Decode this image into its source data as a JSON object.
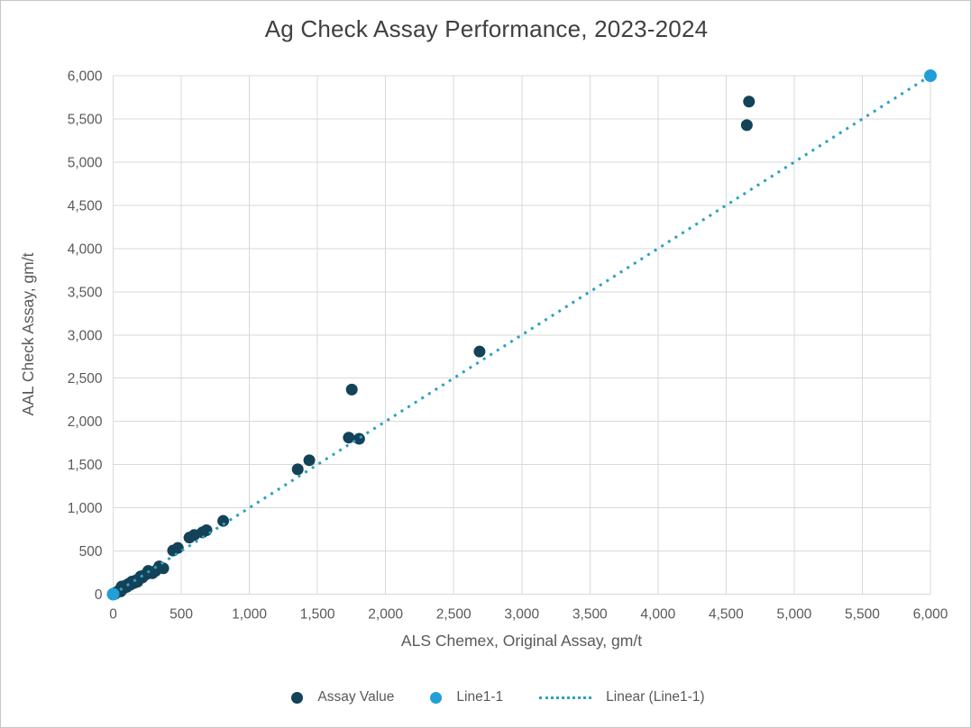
{
  "window": {
    "background": "#FFFFFF",
    "border_color": "#C6C6C6"
  },
  "chart_data": {
    "type": "scatter",
    "title": "Ag Check Assay Performance, 2023-2024",
    "xlabel": "ALS Chemex, Original Assay, gm/t",
    "ylabel": "AAL Check Assay, gm/t",
    "xlim": [
      0,
      6000
    ],
    "ylim": [
      0,
      6000
    ],
    "grid": true,
    "legend_position": "bottom",
    "colors": {
      "assay": "#134259",
      "line11": "#219FD6",
      "trend": "#2BA1C4",
      "grid": "#D9D9D9",
      "tick_text": "#595959",
      "title_text": "#404040"
    },
    "x_ticks": [
      {
        "v": 0,
        "label": "0"
      },
      {
        "v": 500,
        "label": "500"
      },
      {
        "v": 1000,
        "label": "1,000"
      },
      {
        "v": 1500,
        "label": "1,500"
      },
      {
        "v": 2000,
        "label": "2,000"
      },
      {
        "v": 2500,
        "label": "2,500"
      },
      {
        "v": 3000,
        "label": "3,000"
      },
      {
        "v": 3500,
        "label": "3,500"
      },
      {
        "v": 4000,
        "label": "4,000"
      },
      {
        "v": 4500,
        "label": "4,500"
      },
      {
        "v": 5000,
        "label": "5,000"
      },
      {
        "v": 5500,
        "label": "5,500"
      },
      {
        "v": 6000,
        "label": "6,000"
      }
    ],
    "y_ticks": [
      {
        "v": 0,
        "label": "0"
      },
      {
        "v": 500,
        "label": "500"
      },
      {
        "v": 1000,
        "label": "1,000"
      },
      {
        "v": 1500,
        "label": "1,500"
      },
      {
        "v": 2000,
        "label": "2,000"
      },
      {
        "v": 2500,
        "label": "2,500"
      },
      {
        "v": 3000,
        "label": "3,000"
      },
      {
        "v": 3500,
        "label": "3,500"
      },
      {
        "v": 4000,
        "label": "4,000"
      },
      {
        "v": 4500,
        "label": "4,500"
      },
      {
        "v": 5000,
        "label": "5,000"
      },
      {
        "v": 5500,
        "label": "5,500"
      },
      {
        "v": 6000,
        "label": "6,000"
      }
    ],
    "series": [
      {
        "name": "Assay Value",
        "type": "scatter",
        "color_key": "assay",
        "marker_radius": 6.5,
        "points": [
          [
            3,
            2
          ],
          [
            8,
            10
          ],
          [
            14,
            4
          ],
          [
            22,
            18
          ],
          [
            30,
            28
          ],
          [
            42,
            40
          ],
          [
            55,
            32
          ],
          [
            62,
            88
          ],
          [
            75,
            66
          ],
          [
            88,
            98
          ],
          [
            100,
            84
          ],
          [
            112,
            118
          ],
          [
            124,
            108
          ],
          [
            138,
            146
          ],
          [
            150,
            128
          ],
          [
            164,
            158
          ],
          [
            178,
            144
          ],
          [
            190,
            180
          ],
          [
            202,
            206
          ],
          [
            214,
            192
          ],
          [
            228,
            218
          ],
          [
            244,
            232
          ],
          [
            258,
            270
          ],
          [
            288,
            242
          ],
          [
            310,
            268
          ],
          [
            338,
            322
          ],
          [
            368,
            300
          ],
          [
            440,
            505
          ],
          [
            475,
            535
          ],
          [
            560,
            655
          ],
          [
            595,
            685
          ],
          [
            655,
            715
          ],
          [
            685,
            740
          ],
          [
            808,
            848
          ],
          [
            1355,
            1445
          ],
          [
            1440,
            1550
          ],
          [
            1730,
            1812
          ],
          [
            1806,
            1798
          ],
          [
            1752,
            2368
          ],
          [
            2690,
            2808
          ],
          [
            4652,
            5428
          ],
          [
            4668,
            5700
          ]
        ]
      },
      {
        "name": "Line1-1",
        "type": "scatter",
        "color_key": "line11",
        "marker_radius": 7,
        "points": [
          [
            0,
            0
          ],
          [
            6000,
            6000
          ]
        ]
      },
      {
        "name": "Linear (Line1-1)",
        "type": "trendline",
        "line_style": "dotted",
        "color_key": "trend",
        "points": [
          [
            0,
            0
          ],
          [
            6000,
            6000
          ]
        ]
      }
    ]
  }
}
